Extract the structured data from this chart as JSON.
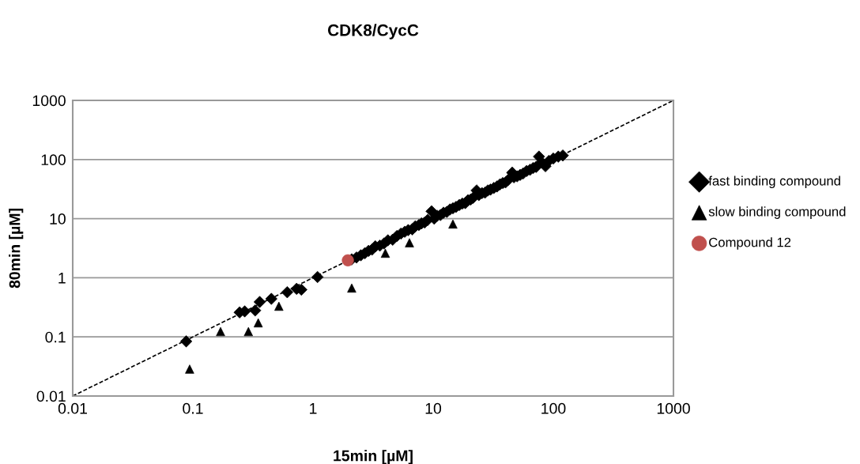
{
  "chart_data": {
    "type": "scatter",
    "title": "CDK8/CycC",
    "xlabel": "15min [µM]",
    "ylabel": "80min [µM]",
    "log": "xy",
    "xlim": [
      0.01,
      1000
    ],
    "ylim": [
      0.01,
      1000
    ],
    "xticks": [
      0.01,
      0.1,
      1,
      10,
      100,
      1000
    ],
    "yticks": [
      0.01,
      0.1,
      1,
      10,
      100,
      1000
    ],
    "grid": "y",
    "legend": "right",
    "series": [
      {
        "name": null,
        "type": "line",
        "color": "#000000",
        "line_style": "dashed",
        "marker": "none",
        "x": [
          0.01,
          1000
        ],
        "values": [
          0.01,
          1000
        ]
      },
      {
        "name": "fast binding compound",
        "color": "#000000",
        "marker": "diamond",
        "x": [
          0.088,
          0.245,
          0.27,
          0.33,
          0.36,
          0.45,
          0.61,
          0.73,
          0.8,
          1.09,
          2.1,
          2.3,
          2.5,
          2.7,
          2.9,
          3.1,
          3.3,
          3.6,
          3.9,
          4.2,
          4.6,
          5.0,
          5.4,
          5.8,
          6.2,
          6.7,
          7.1,
          7.6,
          8.0,
          8.5,
          9.0,
          9.7,
          10.2,
          10.8,
          11.5,
          12.2,
          13.0,
          13.8,
          14.6,
          15.5,
          16.5,
          17.5,
          18.5,
          19.5,
          20.5,
          21.5,
          23,
          24,
          25.5,
          27,
          28.5,
          30,
          32,
          34,
          36,
          38,
          40,
          42,
          45.5,
          47,
          50,
          53,
          56,
          60,
          64,
          68,
          72,
          76,
          80,
          86,
          92,
          100,
          110,
          120
        ],
        "values": [
          0.084,
          0.26,
          0.27,
          0.28,
          0.39,
          0.44,
          0.57,
          0.65,
          0.63,
          1.03,
          2.05,
          2.2,
          2.4,
          2.6,
          2.85,
          3.0,
          3.4,
          3.5,
          3.8,
          4.3,
          4.4,
          5.1,
          5.6,
          6.0,
          6.4,
          6.6,
          7.4,
          7.8,
          8.3,
          8.6,
          9.5,
          13.3,
          10.0,
          11.2,
          11.5,
          12.6,
          13.0,
          14.3,
          15.0,
          15.8,
          17.0,
          18.0,
          18.3,
          20.5,
          21.0,
          22.5,
          30,
          25,
          27,
          27.5,
          30,
          31,
          33,
          35,
          38,
          40,
          41,
          45,
          60,
          50,
          52,
          55,
          58,
          64,
          67,
          72,
          75,
          112,
          90,
          77,
          95,
          104,
          112,
          117
        ]
      },
      {
        "name": "slow binding compound",
        "color": "#000000",
        "marker": "triangle",
        "x": [
          0.094,
          0.17,
          0.29,
          0.35,
          0.52,
          2.1,
          4.0,
          6.35,
          14.6
        ],
        "values": [
          0.0285,
          0.123,
          0.123,
          0.173,
          0.33,
          0.67,
          2.6,
          3.9,
          8.1
        ]
      },
      {
        "name": "Compound 12",
        "color": "#c0504d",
        "marker": "circle",
        "x": [
          1.95
        ],
        "values": [
          1.97
        ]
      }
    ]
  }
}
